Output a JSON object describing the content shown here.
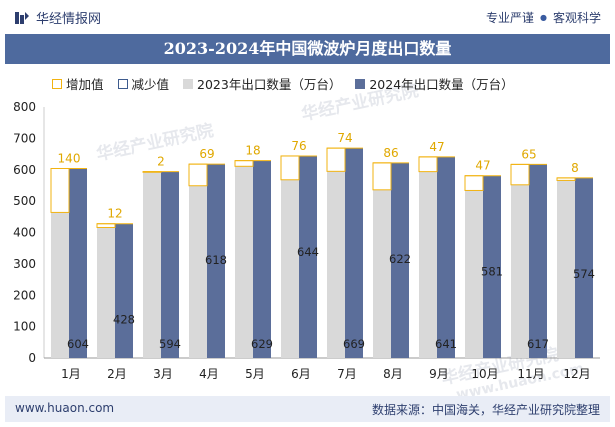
{
  "brand": {
    "name": "华经情报网",
    "tag1": "专业严谨",
    "tag2": "客观科学"
  },
  "footer": {
    "url": "www.huaon.com",
    "source": "数据来源：中国海关，华经产业研究院整理"
  },
  "watermarks": [
    "华经产业研究院",
    "华经产业研究院",
    "华经产业研究院",
    "www.huaon.com"
  ],
  "colors": {
    "bar2023": "#d9d9d9",
    "bar2024": "#5b6e9a",
    "increase": "#f2b311",
    "decrease": "#3e5b8e",
    "title_bg": "#4e6a9e"
  },
  "chart_data": {
    "type": "bar",
    "title": "2023-2024年中国微波炉月度出口数量",
    "categories": [
      "1月",
      "2月",
      "3月",
      "4月",
      "5月",
      "6月",
      "7月",
      "8月",
      "9月",
      "10月",
      "11月",
      "12月"
    ],
    "series": [
      {
        "name": "2023年出口数量（万台）",
        "values": [
          464,
          416,
          592,
          549,
          611,
          568,
          595,
          536,
          594,
          534,
          552,
          566
        ]
      },
      {
        "name": "2024年出口数量（万台）",
        "values": [
          604,
          428,
          594,
          618,
          629,
          644,
          669,
          622,
          641,
          581,
          617,
          574
        ]
      }
    ],
    "increase": {
      "name": "增加值",
      "values": [
        140,
        12,
        2,
        69,
        18,
        76,
        74,
        86,
        47,
        47,
        65,
        8
      ]
    },
    "decrease": {
      "name": "减少值",
      "values": []
    },
    "ylim": [
      0,
      800
    ],
    "yticks": [
      0,
      100,
      200,
      300,
      400,
      500,
      600,
      700,
      800
    ],
    "xlabel": "",
    "ylabel": "",
    "legend_position": "top-left",
    "grid": false
  }
}
